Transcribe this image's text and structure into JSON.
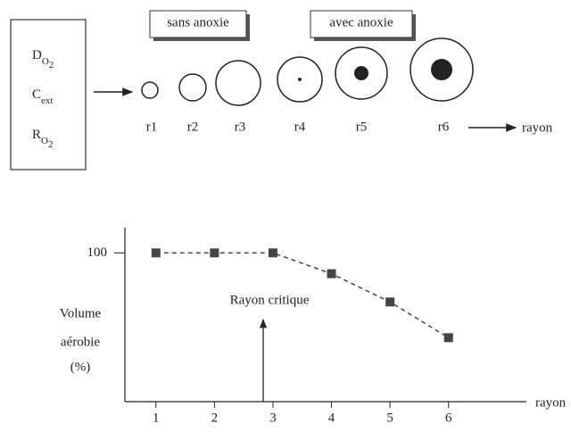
{
  "diagram": {
    "inputs": [
      {
        "base": "D",
        "sub": "O",
        "subsub": "2"
      },
      {
        "base": "C",
        "sub": "ext"
      },
      {
        "base": "R",
        "sub": "O",
        "subsub": "2"
      }
    ],
    "groups": [
      "sans anoxie",
      "avec anoxie"
    ],
    "radius_labels": [
      "r1",
      "r2",
      "r3",
      "r4",
      "r5",
      "r6"
    ],
    "axis_label": "rayon"
  },
  "chart_data": {
    "type": "line",
    "x": [
      1,
      2,
      3,
      4,
      5,
      6
    ],
    "series": [
      {
        "color": "#444444",
        "values": [
          100,
          100,
          100,
          86,
          67,
          43
        ]
      }
    ],
    "xlim": [
      0.47,
      7.33
    ],
    "xticks": [
      1,
      2,
      3,
      4,
      5,
      6
    ],
    "ylim": [
      0,
      117
    ],
    "yticks": [
      100
    ],
    "ylabel": [
      "Volume",
      "aérobie",
      "(%)"
    ],
    "xlabel": "rayon",
    "annotation": "Rayon critique",
    "dashed": true
  }
}
